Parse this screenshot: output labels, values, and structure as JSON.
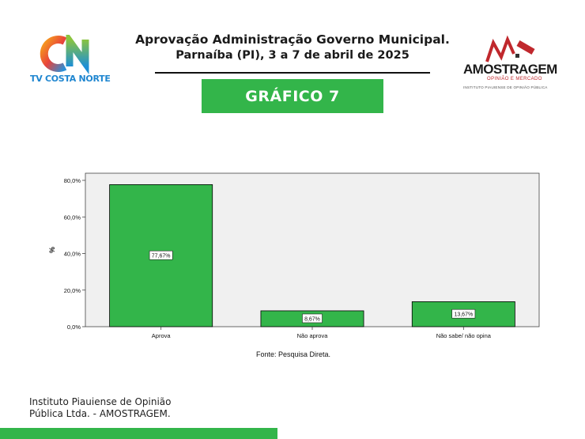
{
  "header": {
    "title_line1": "Aprovação Administração Governo Municipal.",
    "title_line2": "Parnaíba (PI), 3 a 7 de abril de 2025",
    "badge": "GRÁFICO 7"
  },
  "logos": {
    "left_text": "TV COSTA NORTE",
    "right_name": "AMOSTRAGEM",
    "right_sub": "OPINIÃO E MERCADO",
    "right_sub2": "INSTITUTO PIAUIENSE DE OPINIÃO PÚBLICA"
  },
  "chart_data": {
    "type": "bar",
    "categories": [
      "Aprova",
      "Não aprova",
      "Não sabe/ não opina"
    ],
    "values": [
      77.67,
      8.67,
      13.67
    ],
    "data_labels": [
      "77,67%",
      "8,67%",
      "13,67%"
    ],
    "ylabel": "%",
    "xlabel": "",
    "ylim": [
      0,
      80
    ],
    "yticks": [
      0,
      20,
      40,
      60,
      80
    ],
    "ytick_labels": [
      "0,0%",
      "20,0%",
      "40,0%",
      "60,0%",
      "80,0%"
    ],
    "grid": false,
    "colors": {
      "bar": "#33b54a",
      "plot_bg": "#f0f0f0",
      "bar_edge": "#000000"
    }
  },
  "source": "Fonte: Pesquisa Direta.",
  "footer": {
    "line1": "Instituto Piauiense de Opinião",
    "line2": "Pública Ltda. - AMOSTRAGEM."
  },
  "colors": {
    "accent": "#33b54a"
  }
}
